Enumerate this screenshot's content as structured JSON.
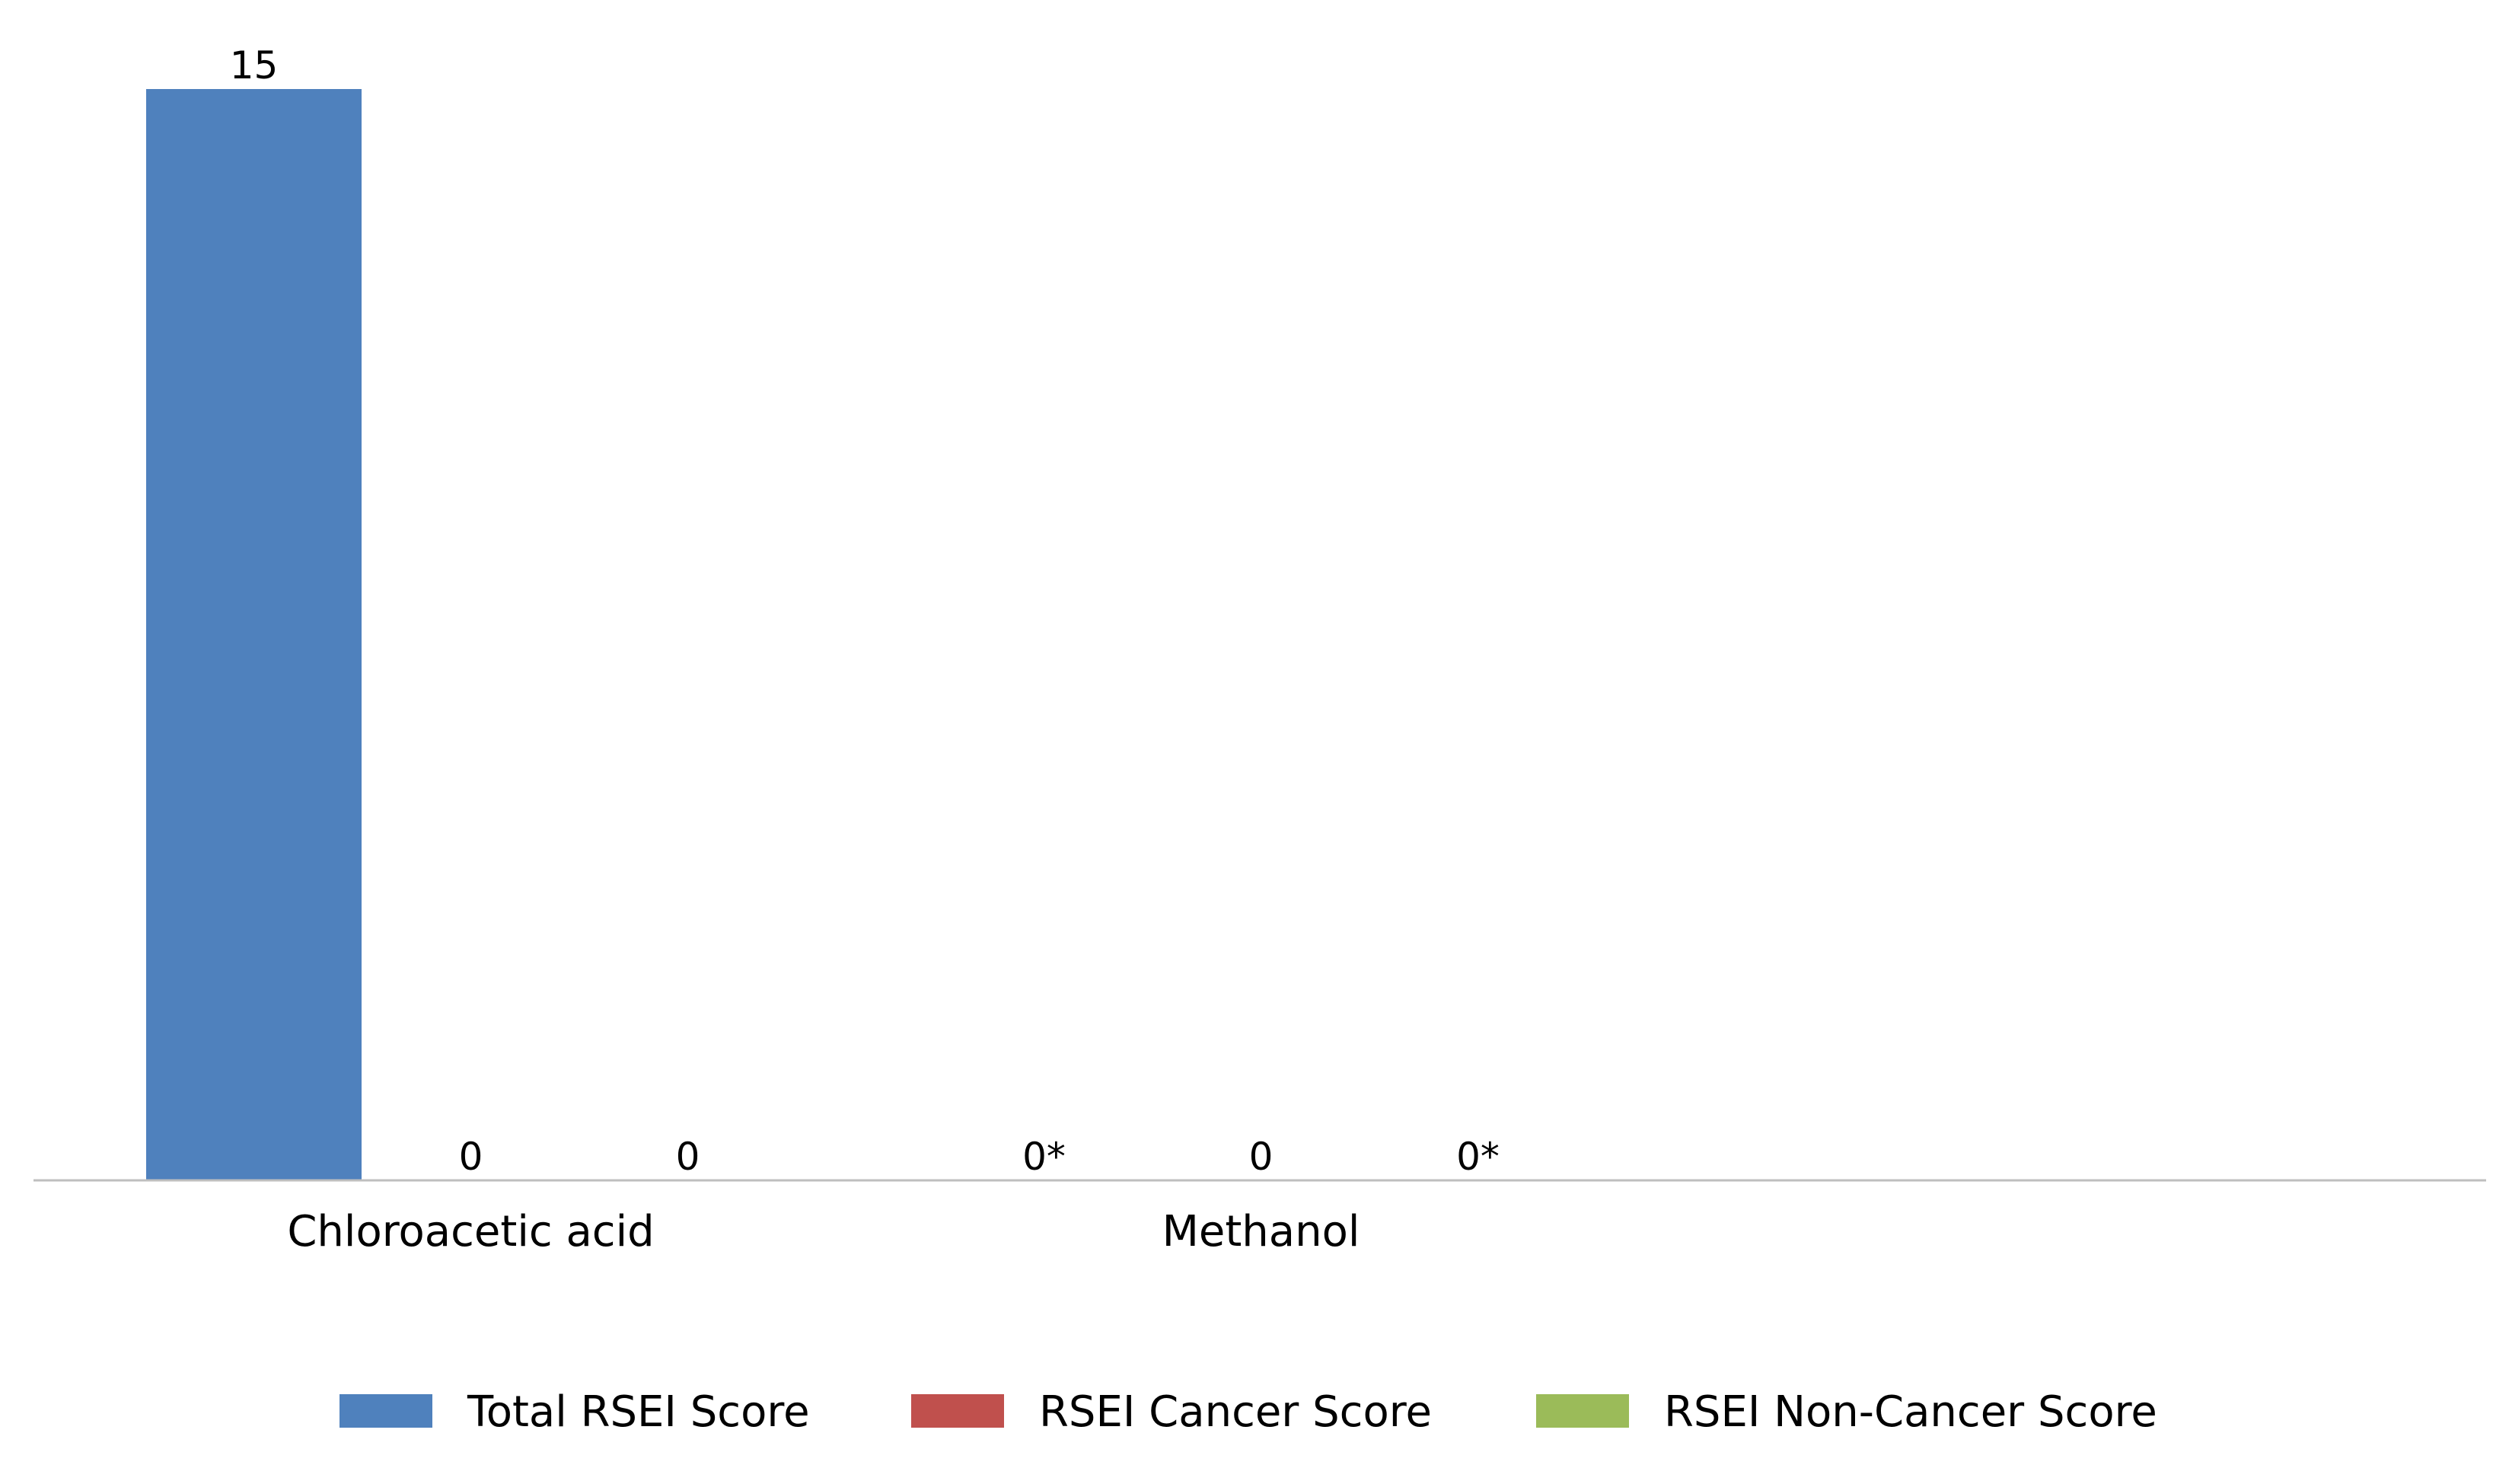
{
  "chart_data": {
    "type": "bar",
    "categories": [
      "Chloroacetic acid",
      "Methanol"
    ],
    "series": [
      {
        "name": "Total RSEI Score",
        "color": "#4F81BD",
        "values": [
          15,
          0
        ],
        "labels": [
          "15",
          "0*"
        ]
      },
      {
        "name": "RSEI Cancer Score",
        "color": "#C0504D",
        "values": [
          0,
          0
        ],
        "labels": [
          "0",
          "0"
        ]
      },
      {
        "name": "RSEI Non-Cancer Score",
        "color": "#9BBB59",
        "values": [
          0,
          0
        ],
        "labels": [
          "0",
          "0*"
        ]
      }
    ],
    "ylim": [
      0,
      15
    ],
    "grid": false,
    "y_axis_visible": false,
    "legend_position": "bottom",
    "axis_color": "#BFBFBF"
  }
}
